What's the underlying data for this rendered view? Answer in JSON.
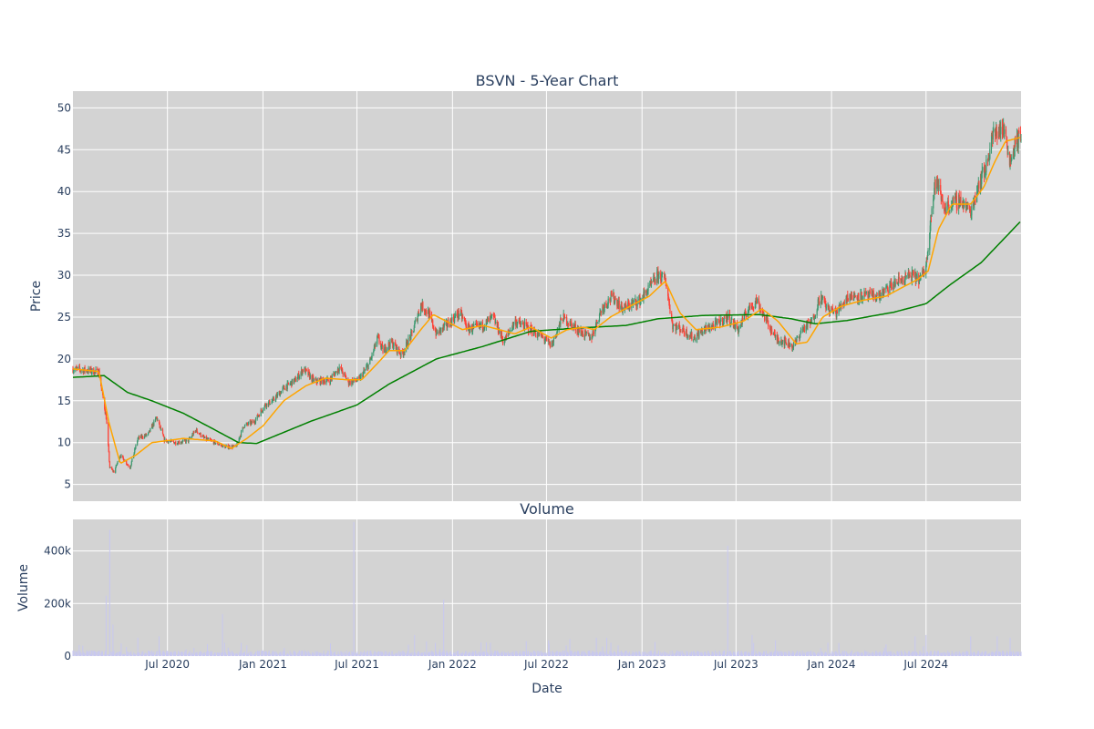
{
  "chart_data": [
    {
      "type": "candlestick",
      "title": "BSVN - 5-Year Chart",
      "xlabel": "",
      "ylabel": "Price",
      "ylim": [
        3,
        52
      ],
      "y_ticks": [
        5,
        10,
        15,
        20,
        25,
        30,
        35,
        40,
        45,
        50
      ],
      "x_range": [
        "2020-01-01",
        "2024-12-31"
      ],
      "grid": true,
      "legend": "none",
      "colors": {
        "increasing": "#3d9970",
        "decreasing": "#ff4136",
        "ma_short": "#ffa500",
        "ma_long": "#008000",
        "plot_bg": "#d3d3d3"
      },
      "price_anchors": [
        [
          "2020-01-02",
          18.8
        ],
        [
          "2020-02-01",
          18.6
        ],
        [
          "2020-02-20",
          18.4
        ],
        [
          "2020-03-05",
          13.0
        ],
        [
          "2020-03-12",
          7.0
        ],
        [
          "2020-03-20",
          6.5
        ],
        [
          "2020-04-01",
          8.5
        ],
        [
          "2020-04-20",
          7.0
        ],
        [
          "2020-05-05",
          10.5
        ],
        [
          "2020-05-25",
          11.0
        ],
        [
          "2020-06-10",
          13.0
        ],
        [
          "2020-06-25",
          10.3
        ],
        [
          "2020-07-15",
          10.0
        ],
        [
          "2020-08-10",
          10.2
        ],
        [
          "2020-08-25",
          11.5
        ],
        [
          "2020-09-10",
          10.5
        ],
        [
          "2020-10-01",
          10.0
        ],
        [
          "2020-10-20",
          9.5
        ],
        [
          "2020-11-10",
          9.5
        ],
        [
          "2020-11-25",
          12.0
        ],
        [
          "2020-12-15",
          12.5
        ],
        [
          "2021-01-05",
          14.5
        ],
        [
          "2021-01-20",
          15.0
        ],
        [
          "2021-02-10",
          16.5
        ],
        [
          "2021-03-05",
          17.5
        ],
        [
          "2021-03-20",
          18.8
        ],
        [
          "2021-04-10",
          17.3
        ],
        [
          "2021-05-10",
          17.5
        ],
        [
          "2021-05-28",
          19.0
        ],
        [
          "2021-06-15",
          17.2
        ],
        [
          "2021-07-05",
          17.5
        ],
        [
          "2021-07-25",
          19.5
        ],
        [
          "2021-08-10",
          22.5
        ],
        [
          "2021-08-20",
          21.0
        ],
        [
          "2021-09-05",
          22.0
        ],
        [
          "2021-09-25",
          20.5
        ],
        [
          "2021-10-15",
          23.0
        ],
        [
          "2021-11-01",
          26.5
        ],
        [
          "2021-11-15",
          25.5
        ],
        [
          "2021-12-01",
          23.0
        ],
        [
          "2021-12-20",
          24.0
        ],
        [
          "2022-01-15",
          25.5
        ],
        [
          "2022-02-01",
          23.5
        ],
        [
          "2022-03-01",
          24.0
        ],
        [
          "2022-03-20",
          25.0
        ],
        [
          "2022-04-10",
          22.0
        ],
        [
          "2022-05-01",
          24.5
        ],
        [
          "2022-06-01",
          23.5
        ],
        [
          "2022-06-25",
          22.5
        ],
        [
          "2022-07-10",
          21.5
        ],
        [
          "2022-08-01",
          25.0
        ],
        [
          "2022-08-20",
          24.0
        ],
        [
          "2022-09-10",
          23.0
        ],
        [
          "2022-09-25",
          22.5
        ],
        [
          "2022-10-15",
          26.0
        ],
        [
          "2022-11-05",
          27.5
        ],
        [
          "2022-11-25",
          26.0
        ],
        [
          "2022-12-10",
          26.5
        ],
        [
          "2022-12-28",
          27.0
        ],
        [
          "2023-01-15",
          28.5
        ],
        [
          "2023-02-01",
          30.0
        ],
        [
          "2023-02-15",
          29.5
        ],
        [
          "2023-03-01",
          24.0
        ],
        [
          "2023-03-20",
          23.5
        ],
        [
          "2023-04-10",
          22.5
        ],
        [
          "2023-05-01",
          23.5
        ],
        [
          "2023-05-20",
          24.0
        ],
        [
          "2023-06-15",
          25.0
        ],
        [
          "2023-07-05",
          23.5
        ],
        [
          "2023-07-25",
          26.0
        ],
        [
          "2023-08-10",
          27.0
        ],
        [
          "2023-08-25",
          25.0
        ],
        [
          "2023-09-15",
          22.5
        ],
        [
          "2023-10-05",
          22.0
        ],
        [
          "2023-10-20",
          21.5
        ],
        [
          "2023-11-05",
          23.5
        ],
        [
          "2023-11-25",
          24.5
        ],
        [
          "2023-12-10",
          27.5
        ],
        [
          "2023-12-25",
          26.0
        ],
        [
          "2024-01-10",
          25.5
        ],
        [
          "2024-02-01",
          27.5
        ],
        [
          "2024-03-01",
          27.5
        ],
        [
          "2024-04-01",
          27.5
        ],
        [
          "2024-05-01",
          29.0
        ],
        [
          "2024-06-01",
          30.0
        ],
        [
          "2024-06-20",
          29.5
        ],
        [
          "2024-07-01",
          31.0
        ],
        [
          "2024-07-10",
          37.0
        ],
        [
          "2024-07-20",
          41.5
        ],
        [
          "2024-08-05",
          38.0
        ],
        [
          "2024-08-20",
          38.5
        ],
        [
          "2024-09-05",
          39.0
        ],
        [
          "2024-09-25",
          37.5
        ],
        [
          "2024-10-10",
          41.0
        ],
        [
          "2024-10-25",
          43.0
        ],
        [
          "2024-11-05",
          46.5
        ],
        [
          "2024-11-20",
          47.5
        ],
        [
          "2024-12-01",
          47.0
        ],
        [
          "2024-12-10",
          43.5
        ],
        [
          "2024-12-20",
          46.0
        ],
        [
          "2024-12-31",
          46.5
        ]
      ],
      "ma_short_anchors": [
        [
          "2020-01-02",
          18.8
        ],
        [
          "2020-02-20",
          18.5
        ],
        [
          "2020-03-10",
          12.5
        ],
        [
          "2020-04-01",
          7.5
        ],
        [
          "2020-05-01",
          8.5
        ],
        [
          "2020-06-01",
          10.0
        ],
        [
          "2020-08-01",
          10.5
        ],
        [
          "2020-10-01",
          10.2
        ],
        [
          "2020-11-01",
          9.3
        ],
        [
          "2020-12-01",
          10.5
        ],
        [
          "2021-01-01",
          12.0
        ],
        [
          "2021-02-10",
          15.0
        ],
        [
          "2021-03-25",
          16.8
        ],
        [
          "2021-05-01",
          17.7
        ],
        [
          "2021-06-15",
          17.5
        ],
        [
          "2021-07-10",
          17.5
        ],
        [
          "2021-08-10",
          19.5
        ],
        [
          "2021-09-01",
          21.0
        ],
        [
          "2021-10-01",
          21.0
        ],
        [
          "2021-11-01",
          23.5
        ],
        [
          "2021-11-25",
          25.3
        ],
        [
          "2021-12-20",
          24.5
        ],
        [
          "2022-01-20",
          23.5
        ],
        [
          "2022-03-01",
          24.0
        ],
        [
          "2022-04-01",
          23.5
        ],
        [
          "2022-05-01",
          23.0
        ],
        [
          "2022-06-01",
          23.8
        ],
        [
          "2022-07-10",
          22.5
        ],
        [
          "2022-08-10",
          23.5
        ],
        [
          "2022-09-10",
          23.8
        ],
        [
          "2022-10-01",
          23.5
        ],
        [
          "2022-11-01",
          25.0
        ],
        [
          "2022-12-15",
          26.5
        ],
        [
          "2023-01-15",
          27.5
        ],
        [
          "2023-02-15",
          29.3
        ],
        [
          "2023-03-15",
          25.5
        ],
        [
          "2023-04-15",
          23.5
        ],
        [
          "2023-06-01",
          23.8
        ],
        [
          "2023-07-15",
          24.5
        ],
        [
          "2023-08-20",
          26.0
        ],
        [
          "2023-09-20",
          24.5
        ],
        [
          "2023-10-25",
          21.8
        ],
        [
          "2023-11-15",
          22.0
        ],
        [
          "2023-12-15",
          25.0
        ],
        [
          "2024-01-20",
          26.3
        ],
        [
          "2024-03-01",
          27.0
        ],
        [
          "2024-04-15",
          27.5
        ],
        [
          "2024-05-15",
          28.5
        ],
        [
          "2024-06-15",
          29.5
        ],
        [
          "2024-07-05",
          30.5
        ],
        [
          "2024-07-25",
          35.5
        ],
        [
          "2024-08-20",
          38.5
        ],
        [
          "2024-09-25",
          38.5
        ],
        [
          "2024-10-20",
          40.5
        ],
        [
          "2024-11-10",
          43.5
        ],
        [
          "2024-12-01",
          46.0
        ],
        [
          "2024-12-31",
          46.5
        ]
      ],
      "ma_long_anchors": [
        [
          "2020-01-02",
          17.8
        ],
        [
          "2020-03-01",
          18.0
        ],
        [
          "2020-04-15",
          16.0
        ],
        [
          "2020-06-01",
          15.0
        ],
        [
          "2020-08-01",
          13.5
        ],
        [
          "2020-10-01",
          11.5
        ],
        [
          "2020-11-15",
          10.0
        ],
        [
          "2020-12-20",
          9.9
        ],
        [
          "2021-02-01",
          11.0
        ],
        [
          "2021-04-01",
          12.5
        ],
        [
          "2021-07-01",
          14.5
        ],
        [
          "2021-09-01",
          17.0
        ],
        [
          "2021-12-01",
          20.0
        ],
        [
          "2022-03-01",
          21.5
        ],
        [
          "2022-06-01",
          23.3
        ],
        [
          "2022-09-01",
          23.7
        ],
        [
          "2022-12-01",
          24.0
        ],
        [
          "2023-02-01",
          24.8
        ],
        [
          "2023-05-01",
          25.2
        ],
        [
          "2023-08-15",
          25.3
        ],
        [
          "2023-10-15",
          24.8
        ],
        [
          "2023-12-01",
          24.2
        ],
        [
          "2024-02-01",
          24.6
        ],
        [
          "2024-05-01",
          25.6
        ],
        [
          "2024-07-01",
          26.6
        ],
        [
          "2024-08-15",
          28.8
        ],
        [
          "2024-10-15",
          31.5
        ],
        [
          "2024-12-31",
          36.5
        ]
      ]
    },
    {
      "type": "bar",
      "title": "Volume",
      "xlabel": "Date",
      "ylabel": "Volume",
      "ylim": [
        0,
        520000
      ],
      "y_ticks": [
        0,
        200000,
        400000
      ],
      "y_tick_labels": [
        "0",
        "200k",
        "400k"
      ],
      "x_range": [
        "2020-01-01",
        "2024-12-31"
      ],
      "x_ticks": [
        "2020-07-01",
        "2021-01-01",
        "2021-07-01",
        "2022-01-01",
        "2022-07-01",
        "2023-01-01",
        "2023-07-01",
        "2024-01-01",
        "2024-07-01"
      ],
      "x_tick_labels": [
        "Jul 2020",
        "Jan 2021",
        "Jul 2021",
        "Jan 2022",
        "Jul 2022",
        "Jan 2023",
        "Jul 2023",
        "Jan 2024",
        "Jul 2024"
      ],
      "grid": true,
      "colors": {
        "bars": "#c8c8f0",
        "plot_bg": "#d3d3d3"
      },
      "base_volume": 12000,
      "volume_spikes": [
        [
          "2020-03-05",
          230000
        ],
        [
          "2020-03-12",
          480000
        ],
        [
          "2020-03-18",
          120000
        ],
        [
          "2020-05-05",
          70000
        ],
        [
          "2020-06-15",
          75000
        ],
        [
          "2020-10-15",
          160000
        ],
        [
          "2020-11-20",
          50000
        ],
        [
          "2021-06-25",
          510000
        ],
        [
          "2021-10-20",
          80000
        ],
        [
          "2021-12-15",
          215000
        ],
        [
          "2022-05-15",
          70000
        ],
        [
          "2022-07-05",
          60000
        ],
        [
          "2022-08-15",
          65000
        ],
        [
          "2022-10-05",
          70000
        ],
        [
          "2022-10-25",
          70000
        ],
        [
          "2022-12-25",
          85000
        ],
        [
          "2023-06-15",
          420000
        ],
        [
          "2023-08-01",
          80000
        ],
        [
          "2023-09-15",
          60000
        ],
        [
          "2024-01-15",
          50000
        ],
        [
          "2024-06-10",
          75000
        ],
        [
          "2024-07-01",
          80000
        ],
        [
          "2024-09-25",
          75000
        ],
        [
          "2024-11-15",
          75000
        ],
        [
          "2024-12-10",
          70000
        ]
      ]
    }
  ]
}
